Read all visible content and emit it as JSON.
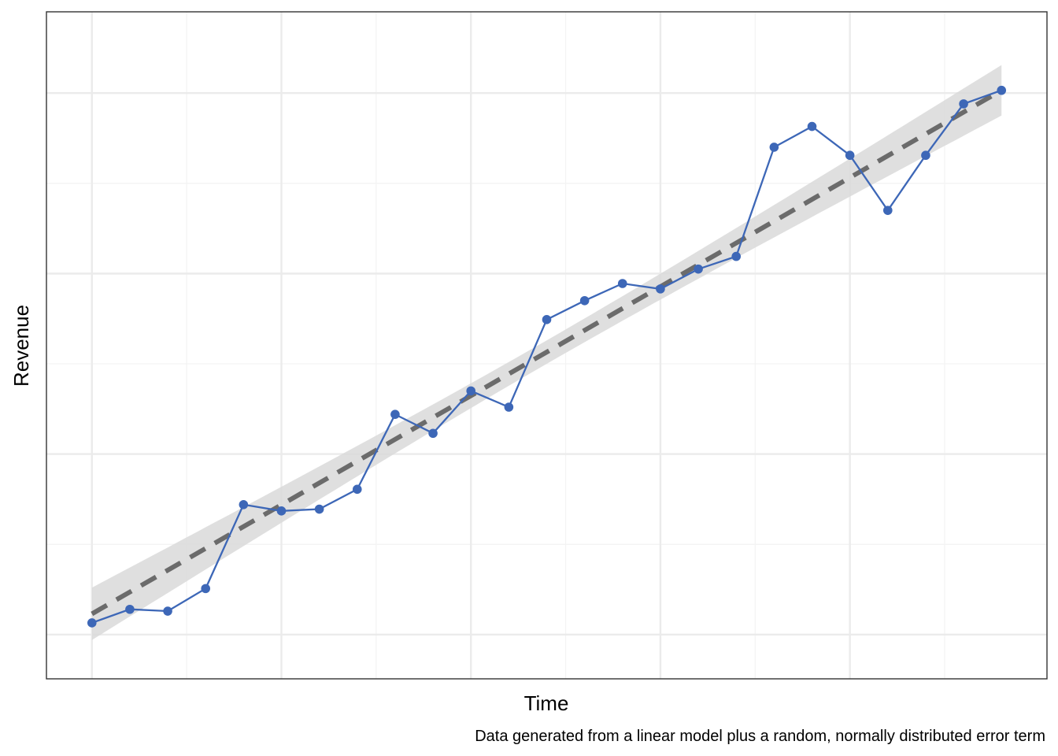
{
  "chart_data": {
    "type": "line",
    "xlabel": "Time",
    "ylabel": "Revenue",
    "caption": "Data generated from a linear model plus a random, normally distributed error term",
    "x": [
      1,
      2,
      3,
      4,
      5,
      6,
      7,
      8,
      9,
      10,
      11,
      12,
      13,
      14,
      15,
      16,
      17,
      18,
      19,
      20,
      21,
      22,
      23,
      24,
      25
    ],
    "series": [
      {
        "values": [
          1.13,
          1.28,
          1.26,
          1.51,
          2.44,
          2.37,
          2.39,
          2.61,
          3.44,
          3.23,
          3.7,
          3.52,
          4.49,
          4.7,
          4.89,
          4.83,
          5.05,
          5.19,
          6.4,
          6.63,
          6.31,
          5.7,
          6.31,
          6.88,
          7.03
        ]
      }
    ],
    "trend": {
      "start": 1.23,
      "end": 7.03,
      "ci_halfwidth_start": 0.29,
      "ci_halfwidth_mid": 0.13,
      "ci_halfwidth_end": 0.28
    },
    "xlim": [
      -0.2,
      26.2
    ],
    "ylim": [
      0.51,
      7.9
    ],
    "x_gridlines_major": [
      1,
      6,
      11,
      16,
      21
    ],
    "x_gridlines_minor": [
      3.5,
      8.5,
      13.5,
      18.5,
      23.5
    ],
    "y_gridlines_major": [
      1,
      3,
      5,
      7
    ],
    "y_gridlines_minor": [
      2,
      4,
      6
    ],
    "tick_labels_shown": false,
    "grid": true,
    "legend": "none",
    "colors": {
      "series": "#3d67b7",
      "trend": "#6b6b6b",
      "band": "#d9d9d9",
      "grid_major": "#ebebeb",
      "grid_minor": "#f3f3f3",
      "border": "#333333"
    }
  }
}
